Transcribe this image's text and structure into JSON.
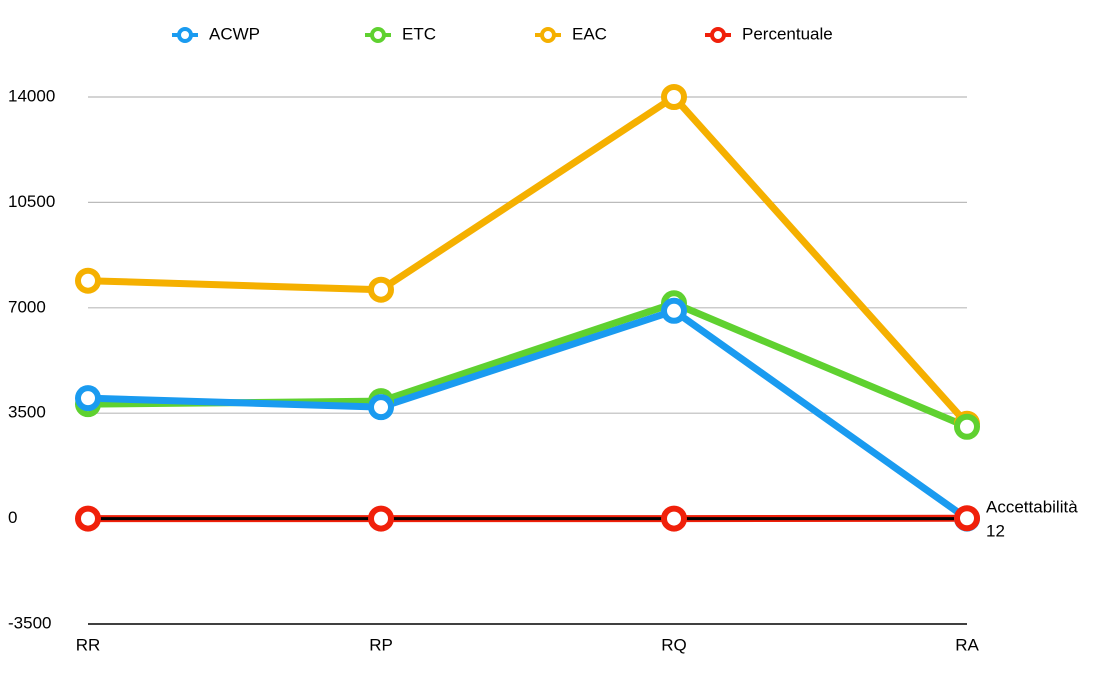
{
  "chart_data": {
    "type": "line",
    "categories": [
      "RR",
      "RP",
      "RQ",
      "RA"
    ],
    "series": [
      {
        "name": "ACWP",
        "color": "#1a9bf0",
        "values": [
          4000,
          3700,
          6900,
          0
        ]
      },
      {
        "name": "ETC",
        "color": "#5fd130",
        "values": [
          3800,
          3900,
          7150,
          3050
        ]
      },
      {
        "name": "EAC",
        "color": "#f5b000",
        "values": [
          7900,
          7600,
          14000,
          3150
        ]
      },
      {
        "name": "Percentuale",
        "color": "#f0200a",
        "values": [
          0,
          0,
          0,
          12
        ]
      }
    ],
    "annotation": "Accettabilità",
    "ylim": [
      -3500,
      14000
    ],
    "yticks": [
      -3500,
      0,
      3500,
      7000,
      10500,
      14000
    ],
    "grid": true,
    "legend": "top"
  }
}
